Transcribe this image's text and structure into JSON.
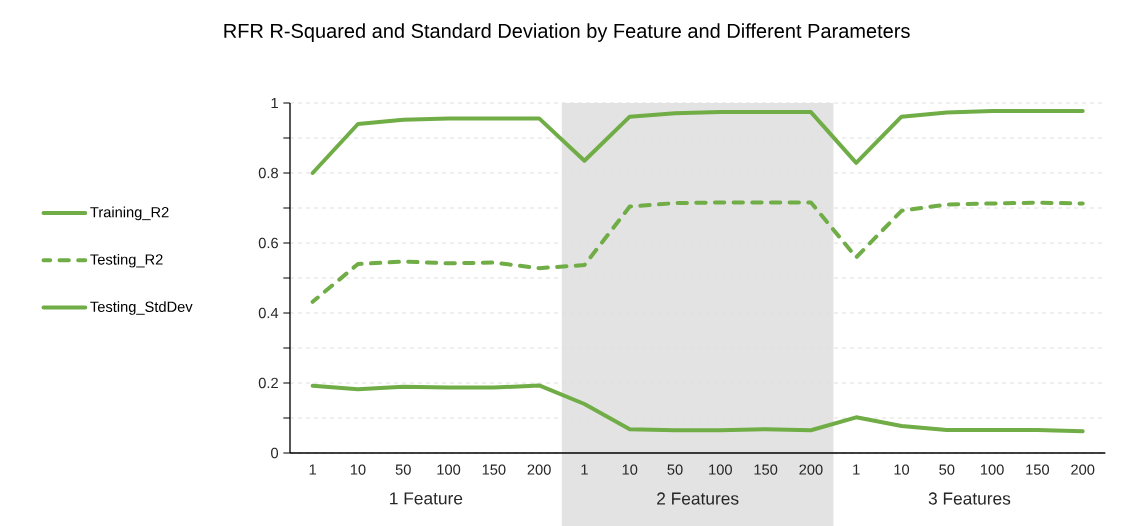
{
  "chart_data": {
    "type": "line",
    "title": "RFR R-Squared and Standard Deviation by Feature and Different Parameters",
    "categories": [
      "1",
      "10",
      "50",
      "100",
      "150",
      "200",
      "1",
      "10",
      "50",
      "100",
      "150",
      "200",
      "1",
      "10",
      "50",
      "100",
      "150",
      "200"
    ],
    "series": [
      {
        "name": "Training_R2",
        "color": "#70ad47",
        "line_style": "solid",
        "values": [
          0.8,
          0.94,
          0.952,
          0.956,
          0.956,
          0.956,
          0.835,
          0.961,
          0.971,
          0.974,
          0.974,
          0.974,
          0.829,
          0.961,
          0.973,
          0.977,
          0.977,
          0.977
        ]
      },
      {
        "name": "Testing_R2",
        "color": "#70ad47",
        "line_style": "dashed",
        "values": [
          0.432,
          0.54,
          0.547,
          0.542,
          0.544,
          0.528,
          0.537,
          0.704,
          0.714,
          0.716,
          0.716,
          0.716,
          0.559,
          0.692,
          0.71,
          0.713,
          0.715,
          0.713
        ]
      },
      {
        "name": "Testing_StdDev",
        "color": "#70ad47",
        "line_style": "solid",
        "values": [
          0.192,
          0.182,
          0.189,
          0.187,
          0.187,
          0.193,
          0.14,
          0.068,
          0.065,
          0.065,
          0.068,
          0.065,
          0.102,
          0.077,
          0.066,
          0.066,
          0.066,
          0.062
        ]
      }
    ],
    "ylim": [
      0,
      1
    ],
    "yticks": [
      0,
      {
        "value": 0.1,
        "label": null
      },
      0.2,
      {
        "value": 0.3,
        "label": null
      },
      0.4,
      {
        "value": 0.5,
        "label": null
      },
      0.6,
      {
        "value": 0.7,
        "label": null
      },
      0.8,
      {
        "value": 0.9,
        "label": null
      },
      1
    ],
    "grid": "y",
    "legend": "left",
    "marker": "none",
    "annotations": [
      "1 Feature",
      "2 Features",
      "3 Features"
    ]
  }
}
